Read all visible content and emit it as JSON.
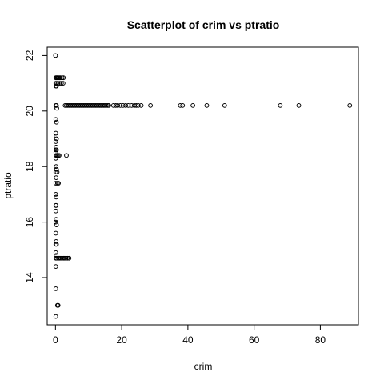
{
  "chart_data": {
    "type": "scatter",
    "title": "Scatterplot of crim vs ptratio",
    "xlabel": "crim",
    "ylabel": "ptratio",
    "xlim": [
      -2.5,
      91.5
    ],
    "ylim": [
      12.3,
      22.3
    ],
    "xticks": [
      0,
      20,
      40,
      60,
      80
    ],
    "yticks": [
      14,
      16,
      18,
      20,
      22
    ],
    "points": [
      [
        0.01,
        22.0
      ],
      [
        0.1,
        21.2
      ],
      [
        0.3,
        21.2
      ],
      [
        0.5,
        21.2
      ],
      [
        0.7,
        21.2
      ],
      [
        0.9,
        21.2
      ],
      [
        1.2,
        21.2
      ],
      [
        1.5,
        21.2
      ],
      [
        2.0,
        21.2
      ],
      [
        2.4,
        21.2
      ],
      [
        0.1,
        21.0
      ],
      [
        0.4,
        21.0
      ],
      [
        0.8,
        21.0
      ],
      [
        1.3,
        21.0
      ],
      [
        1.8,
        21.0
      ],
      [
        2.3,
        21.0
      ],
      [
        0.1,
        20.9
      ],
      [
        0.3,
        20.9
      ],
      [
        0.1,
        20.2
      ],
      [
        0.3,
        20.2
      ],
      [
        0.4,
        20.1
      ],
      [
        2.9,
        20.2
      ],
      [
        3.3,
        20.2
      ],
      [
        3.7,
        20.2
      ],
      [
        4.1,
        20.2
      ],
      [
        4.5,
        20.2
      ],
      [
        4.9,
        20.2
      ],
      [
        5.3,
        20.2
      ],
      [
        5.7,
        20.2
      ],
      [
        6.1,
        20.2
      ],
      [
        6.5,
        20.2
      ],
      [
        6.9,
        20.2
      ],
      [
        7.3,
        20.2
      ],
      [
        7.7,
        20.2
      ],
      [
        8.1,
        20.2
      ],
      [
        8.5,
        20.2
      ],
      [
        8.9,
        20.2
      ],
      [
        9.3,
        20.2
      ],
      [
        9.7,
        20.2
      ],
      [
        10.1,
        20.2
      ],
      [
        10.5,
        20.2
      ],
      [
        10.9,
        20.2
      ],
      [
        11.3,
        20.2
      ],
      [
        11.7,
        20.2
      ],
      [
        12.1,
        20.2
      ],
      [
        12.5,
        20.2
      ],
      [
        12.9,
        20.2
      ],
      [
        13.3,
        20.2
      ],
      [
        13.7,
        20.2
      ],
      [
        14.1,
        20.2
      ],
      [
        14.5,
        20.2
      ],
      [
        14.9,
        20.2
      ],
      [
        15.3,
        20.2
      ],
      [
        15.7,
        20.2
      ],
      [
        16.1,
        20.2
      ],
      [
        17.5,
        20.2
      ],
      [
        18.2,
        20.2
      ],
      [
        18.8,
        20.2
      ],
      [
        19.6,
        20.2
      ],
      [
        20.4,
        20.2
      ],
      [
        21.2,
        20.2
      ],
      [
        22.0,
        20.2
      ],
      [
        23.0,
        20.2
      ],
      [
        23.8,
        20.2
      ],
      [
        24.4,
        20.2
      ],
      [
        25.0,
        20.2
      ],
      [
        25.9,
        20.2
      ],
      [
        28.7,
        20.2
      ],
      [
        37.7,
        20.2
      ],
      [
        38.4,
        20.2
      ],
      [
        41.5,
        20.2
      ],
      [
        45.7,
        20.2
      ],
      [
        51.1,
        20.2
      ],
      [
        67.9,
        20.2
      ],
      [
        73.5,
        20.2
      ],
      [
        88.9,
        20.2
      ],
      [
        0.1,
        19.7
      ],
      [
        0.3,
        19.6
      ],
      [
        0.1,
        19.2
      ],
      [
        0.2,
        19.1
      ],
      [
        0.3,
        19.0
      ],
      [
        0.1,
        18.9
      ],
      [
        0.2,
        18.7
      ],
      [
        0.1,
        18.6
      ],
      [
        0.3,
        18.6
      ],
      [
        0.1,
        18.5
      ],
      [
        0.2,
        18.4
      ],
      [
        0.5,
        18.4
      ],
      [
        0.8,
        18.4
      ],
      [
        1.1,
        18.4
      ],
      [
        3.3,
        18.4
      ],
      [
        0.1,
        18.3
      ],
      [
        0.2,
        18.0
      ],
      [
        0.3,
        17.9
      ],
      [
        0.1,
        17.8
      ],
      [
        0.5,
        17.8
      ],
      [
        0.2,
        17.6
      ],
      [
        0.1,
        17.4
      ],
      [
        0.6,
        17.4
      ],
      [
        0.9,
        17.4
      ],
      [
        0.1,
        17.0
      ],
      [
        0.2,
        16.9
      ],
      [
        0.1,
        16.6
      ],
      [
        0.2,
        16.6
      ],
      [
        0.1,
        16.4
      ],
      [
        0.2,
        16.1
      ],
      [
        0.1,
        16.0
      ],
      [
        0.3,
        15.9
      ],
      [
        0.1,
        15.6
      ],
      [
        0.2,
        15.3
      ],
      [
        0.1,
        15.2
      ],
      [
        0.3,
        15.2
      ],
      [
        0.1,
        14.9
      ],
      [
        0.2,
        14.8
      ],
      [
        0.1,
        14.7
      ],
      [
        0.4,
        14.7
      ],
      [
        0.9,
        14.7
      ],
      [
        1.2,
        14.7
      ],
      [
        1.6,
        14.7
      ],
      [
        2.0,
        14.7
      ],
      [
        2.4,
        14.7
      ],
      [
        2.8,
        14.7
      ],
      [
        3.2,
        14.7
      ],
      [
        3.6,
        14.7
      ],
      [
        4.1,
        14.7
      ],
      [
        0.1,
        14.4
      ],
      [
        0.1,
        13.6
      ],
      [
        0.6,
        13.0
      ],
      [
        0.8,
        13.0
      ],
      [
        0.1,
        12.6
      ]
    ]
  }
}
